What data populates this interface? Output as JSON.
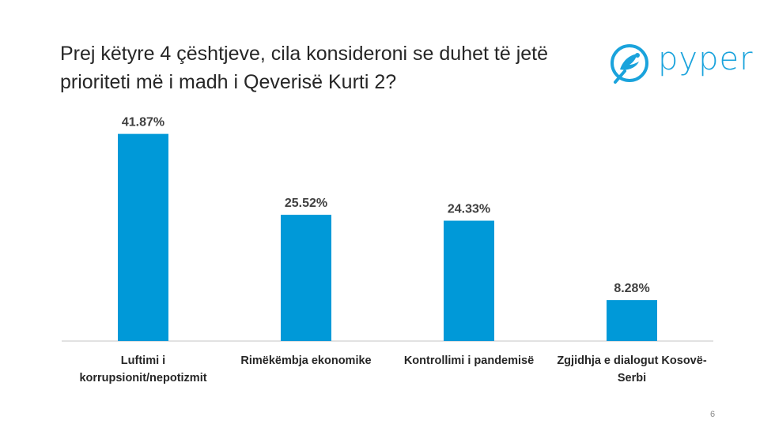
{
  "title": "Prej këtyre 4 çështjeve, cila konsideroni se duhet të jetë prioriteti më i madh i Qeverisë Kurti 2?",
  "brand": {
    "name": "pyper",
    "color": "#1aa3dc",
    "icon": "bird-logo-icon"
  },
  "page_number": "6",
  "chart_data": {
    "type": "bar",
    "title": "Prej këtyre 4 çështjeve, cila konsideroni se duhet të jetë prioriteti më i madh i Qeverisë Kurti 2?",
    "categories": [
      "Luftimi i korrupsionit/nepotizmit",
      "Rimëkëmbja ekonomike",
      "Kontrollimi i pandemisë",
      "Zgjidhja e dialogut Kosovë-Serbi"
    ],
    "values": [
      41.87,
      25.52,
      24.33,
      8.28
    ],
    "data_labels": [
      "41.87%",
      "25.52%",
      "24.33%",
      "8.28%"
    ],
    "unit": "%",
    "bar_color": "#0099d8",
    "ylim": [
      0,
      45
    ],
    "grid": false,
    "legend": "none"
  }
}
